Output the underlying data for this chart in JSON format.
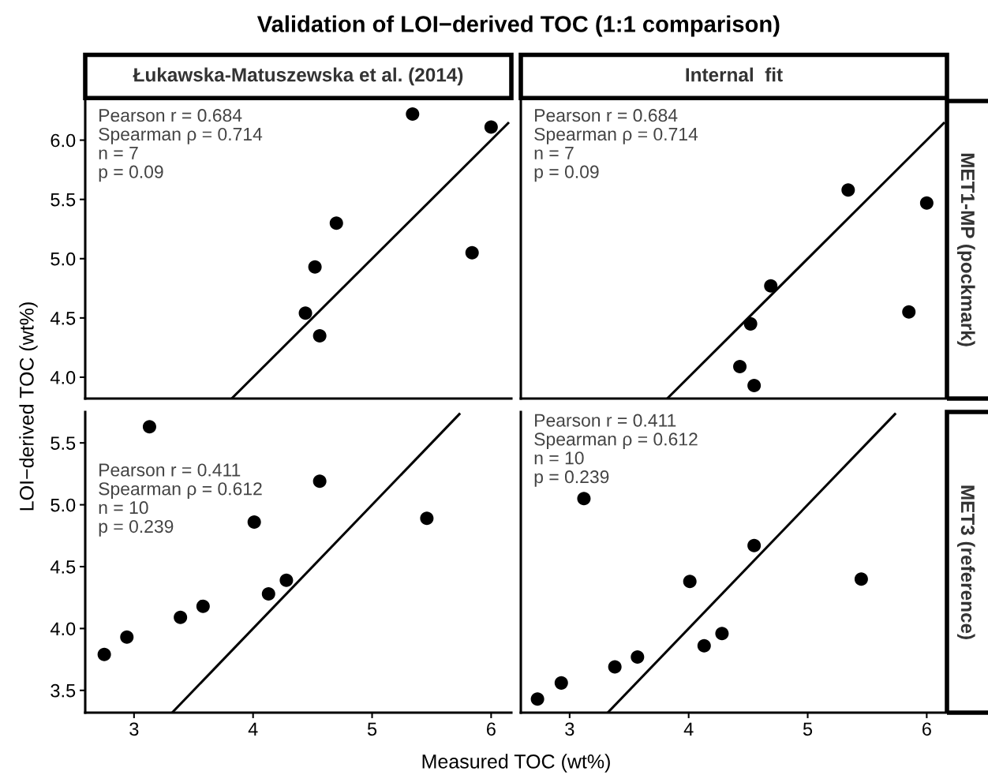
{
  "chart_data": [
    {
      "type": "scatter",
      "title": "Validation of LOI−derived TOC (1:1 comparison)",
      "subtitle": "Łukawska-Matuszewska et al. (2014)",
      "xlim": [
        2.59,
        6.17
      ],
      "ylim": [
        3.82,
        6.33
      ],
      "yticks": [
        {
          "value": 4,
          "label": "4.0"
        },
        4.5,
        {
          "value": 5,
          "label": "5.0"
        },
        5.5,
        {
          "value": 6,
          "label": "6.0"
        }
      ],
      "tick_labels": "y",
      "marker": "circle",
      "grid": false,
      "legend": false,
      "series": [
        {
          "color": "#000000",
          "x": [
            5.34,
            6.0,
            4.7,
            4.52,
            5.84,
            4.44,
            4.56
          ],
          "values": [
            6.22,
            6.11,
            5.3,
            4.93,
            5.05,
            4.54,
            4.35
          ]
        },
        {
          "type": "line",
          "marker": "none",
          "color": "#000000",
          "x": [
            3.82,
            6.15
          ],
          "values": [
            3.82,
            6.15
          ]
        }
      ],
      "annotations": [
        "Pearson r = 0.684",
        "Spearman ρ = 0.714",
        "n = 7",
        "p = 0.09"
      ]
    },
    {
      "type": "scatter",
      "subtitle": "Internal  fit",
      "y2label": "MET1-MP (pockmark)",
      "xlim": [
        2.59,
        6.17
      ],
      "ylim": [
        3.82,
        6.33
      ],
      "tick_labels": false,
      "marker": "circle",
      "grid": false,
      "legend": false,
      "series": [
        {
          "color": "#000000",
          "x": [
            5.34,
            6.0,
            4.69,
            4.52,
            5.85,
            4.43,
            4.55
          ],
          "values": [
            5.58,
            5.47,
            4.77,
            4.45,
            4.55,
            4.09,
            3.93
          ]
        },
        {
          "type": "line",
          "marker": "none",
          "color": "#000000",
          "x": [
            3.82,
            6.15
          ],
          "values": [
            3.82,
            6.15
          ]
        }
      ],
      "annotations": [
        "Pearson r = 0.684",
        "Spearman ρ = 0.714",
        "n = 7",
        "p = 0.09"
      ]
    },
    {
      "type": "scatter",
      "xlabel": "Measured TOC (wt%)",
      "ylabel": "LOI−derived TOC (wt%)",
      "xlim": [
        2.59,
        6.17
      ],
      "ylim": [
        3.32,
        5.75
      ],
      "xticks": [
        3,
        4,
        5,
        6
      ],
      "yticks": [
        3.5,
        {
          "value": 4,
          "label": "4.0"
        },
        4.5,
        {
          "value": 5,
          "label": "5.0"
        },
        5.5
      ],
      "marker": "circle",
      "grid": false,
      "legend": false,
      "series": [
        {
          "color": "#000000",
          "x": [
            3.13,
            4.56,
            4.01,
            5.46,
            4.28,
            4.13,
            3.58,
            3.39,
            2.94,
            2.75
          ],
          "values": [
            5.63,
            5.19,
            4.86,
            4.89,
            4.39,
            4.28,
            4.18,
            4.09,
            3.93,
            3.79
          ]
        },
        {
          "type": "line",
          "marker": "none",
          "color": "#000000",
          "x": [
            3.32,
            5.74
          ],
          "values": [
            3.32,
            5.74
          ]
        }
      ],
      "annotations": [
        "Pearson r = 0.411",
        "Spearman ρ = 0.612",
        "n = 10",
        "p = 0.239"
      ]
    },
    {
      "type": "scatter",
      "y2label": "MET3 (reference)",
      "xlim": [
        2.59,
        6.17
      ],
      "ylim": [
        3.32,
        5.75
      ],
      "xticks": [
        3,
        4,
        5,
        6
      ],
      "tick_labels": "x",
      "marker": "circle",
      "grid": false,
      "legend": false,
      "series": [
        {
          "color": "#000000",
          "x": [
            3.12,
            4.55,
            4.01,
            5.45,
            4.28,
            4.13,
            3.57,
            3.38,
            2.93,
            2.73
          ],
          "values": [
            5.05,
            4.67,
            4.38,
            4.4,
            3.96,
            3.86,
            3.77,
            3.69,
            3.56,
            3.43
          ]
        },
        {
          "type": "line",
          "marker": "none",
          "color": "#000000",
          "x": [
            3.32,
            5.74
          ],
          "values": [
            3.32,
            5.74
          ]
        }
      ],
      "annotations": [
        "Pearson r = 0.411",
        "Spearman ρ = 0.612",
        "n = 10",
        "p = 0.239"
      ]
    }
  ]
}
